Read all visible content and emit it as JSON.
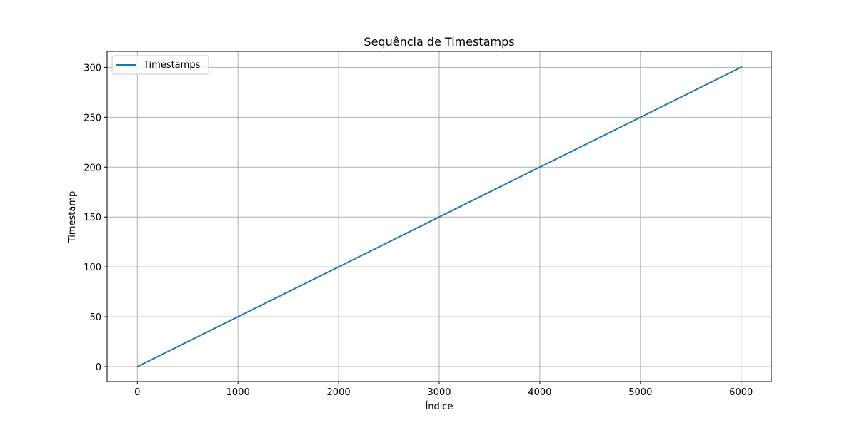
{
  "chart_data": {
    "type": "line",
    "title": "Sequência de Timestamps",
    "xlabel": "Índice",
    "ylabel": "Timestamp",
    "xlim": [
      -300,
      6300
    ],
    "ylim": [
      -15,
      316
    ],
    "x_ticks": [
      0,
      1000,
      2000,
      3000,
      4000,
      5000,
      6000
    ],
    "y_ticks": [
      0,
      50,
      100,
      150,
      200,
      250,
      300
    ],
    "grid": true,
    "legend_position": "top-left",
    "series": [
      {
        "name": "Timestamps",
        "color": "#1f77b4",
        "x": [
          0,
          6010
        ],
        "y": [
          0,
          300.5
        ]
      }
    ]
  },
  "colors": {
    "grid": "#b0b0b0",
    "axis": "#000000",
    "legend_border": "#cccccc"
  }
}
